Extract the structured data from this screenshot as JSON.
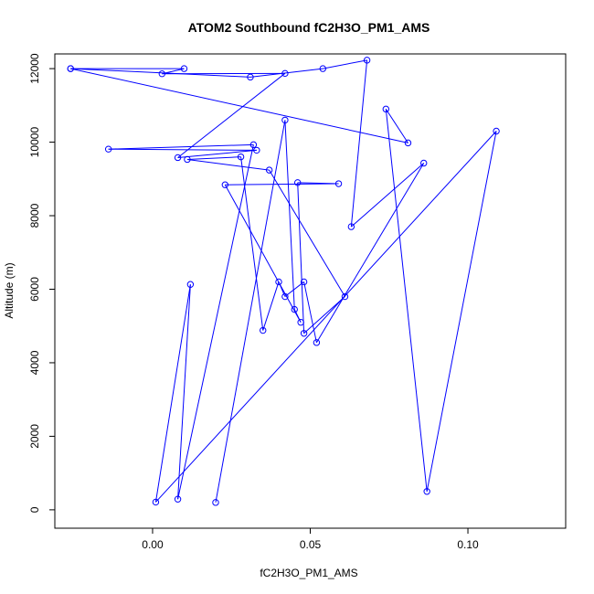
{
  "colors": {
    "series": "#0000ff",
    "axis": "#000000",
    "background": "#ffffff"
  },
  "chart_data": {
    "type": "line",
    "title": "ATOM2 Southbound fC2H3O_PM1_AMS",
    "xlabel": "fC2H3O_PM1_AMS",
    "ylabel": "Altitude (m)",
    "xlim": [
      -0.031,
      0.131
    ],
    "ylim": [
      -500,
      12400
    ],
    "x_ticks": [
      0.0,
      0.05,
      0.1
    ],
    "x_tick_labels": [
      "0.00",
      "0.05",
      "0.10"
    ],
    "y_ticks": [
      0,
      2000,
      4000,
      6000,
      8000,
      10000,
      12000
    ],
    "y_tick_labels": [
      "0",
      "2000",
      "4000",
      "6000",
      "8000",
      "10000",
      "12000"
    ],
    "grid": false,
    "legend": "none",
    "markers": "open-circle",
    "series": [
      {
        "points": [
          [
            -0.026,
            12000
          ],
          [
            0.081,
            9980
          ],
          [
            0.074,
            10900
          ],
          [
            0.087,
            500
          ],
          [
            0.109,
            10300
          ],
          [
            0.001,
            210
          ],
          [
            0.012,
            6130
          ],
          [
            0.008,
            290
          ],
          [
            0.032,
            9930
          ],
          [
            -0.014,
            9810
          ],
          [
            0.033,
            9780
          ],
          [
            0.008,
            9580
          ],
          [
            0.042,
            11870
          ],
          [
            0.003,
            11860
          ],
          [
            0.01,
            12000
          ],
          [
            -0.026,
            12000
          ],
          [
            0.031,
            11770
          ],
          [
            0.054,
            12000
          ],
          [
            0.068,
            12230
          ],
          [
            0.063,
            7700
          ],
          [
            0.086,
            9430
          ],
          [
            0.052,
            4550
          ],
          [
            0.048,
            6200
          ],
          [
            0.042,
            5800
          ],
          [
            0.04,
            6200
          ],
          [
            0.035,
            4880
          ],
          [
            0.028,
            9600
          ],
          [
            0.011,
            9530
          ],
          [
            0.037,
            9240
          ],
          [
            0.061,
            5800
          ],
          [
            0.048,
            4800
          ],
          [
            0.046,
            8900
          ],
          [
            0.059,
            8870
          ],
          [
            0.023,
            8840
          ],
          [
            0.047,
            5100
          ],
          [
            0.045,
            5450
          ],
          [
            0.042,
            10600
          ],
          [
            0.02,
            200
          ]
        ]
      }
    ]
  }
}
